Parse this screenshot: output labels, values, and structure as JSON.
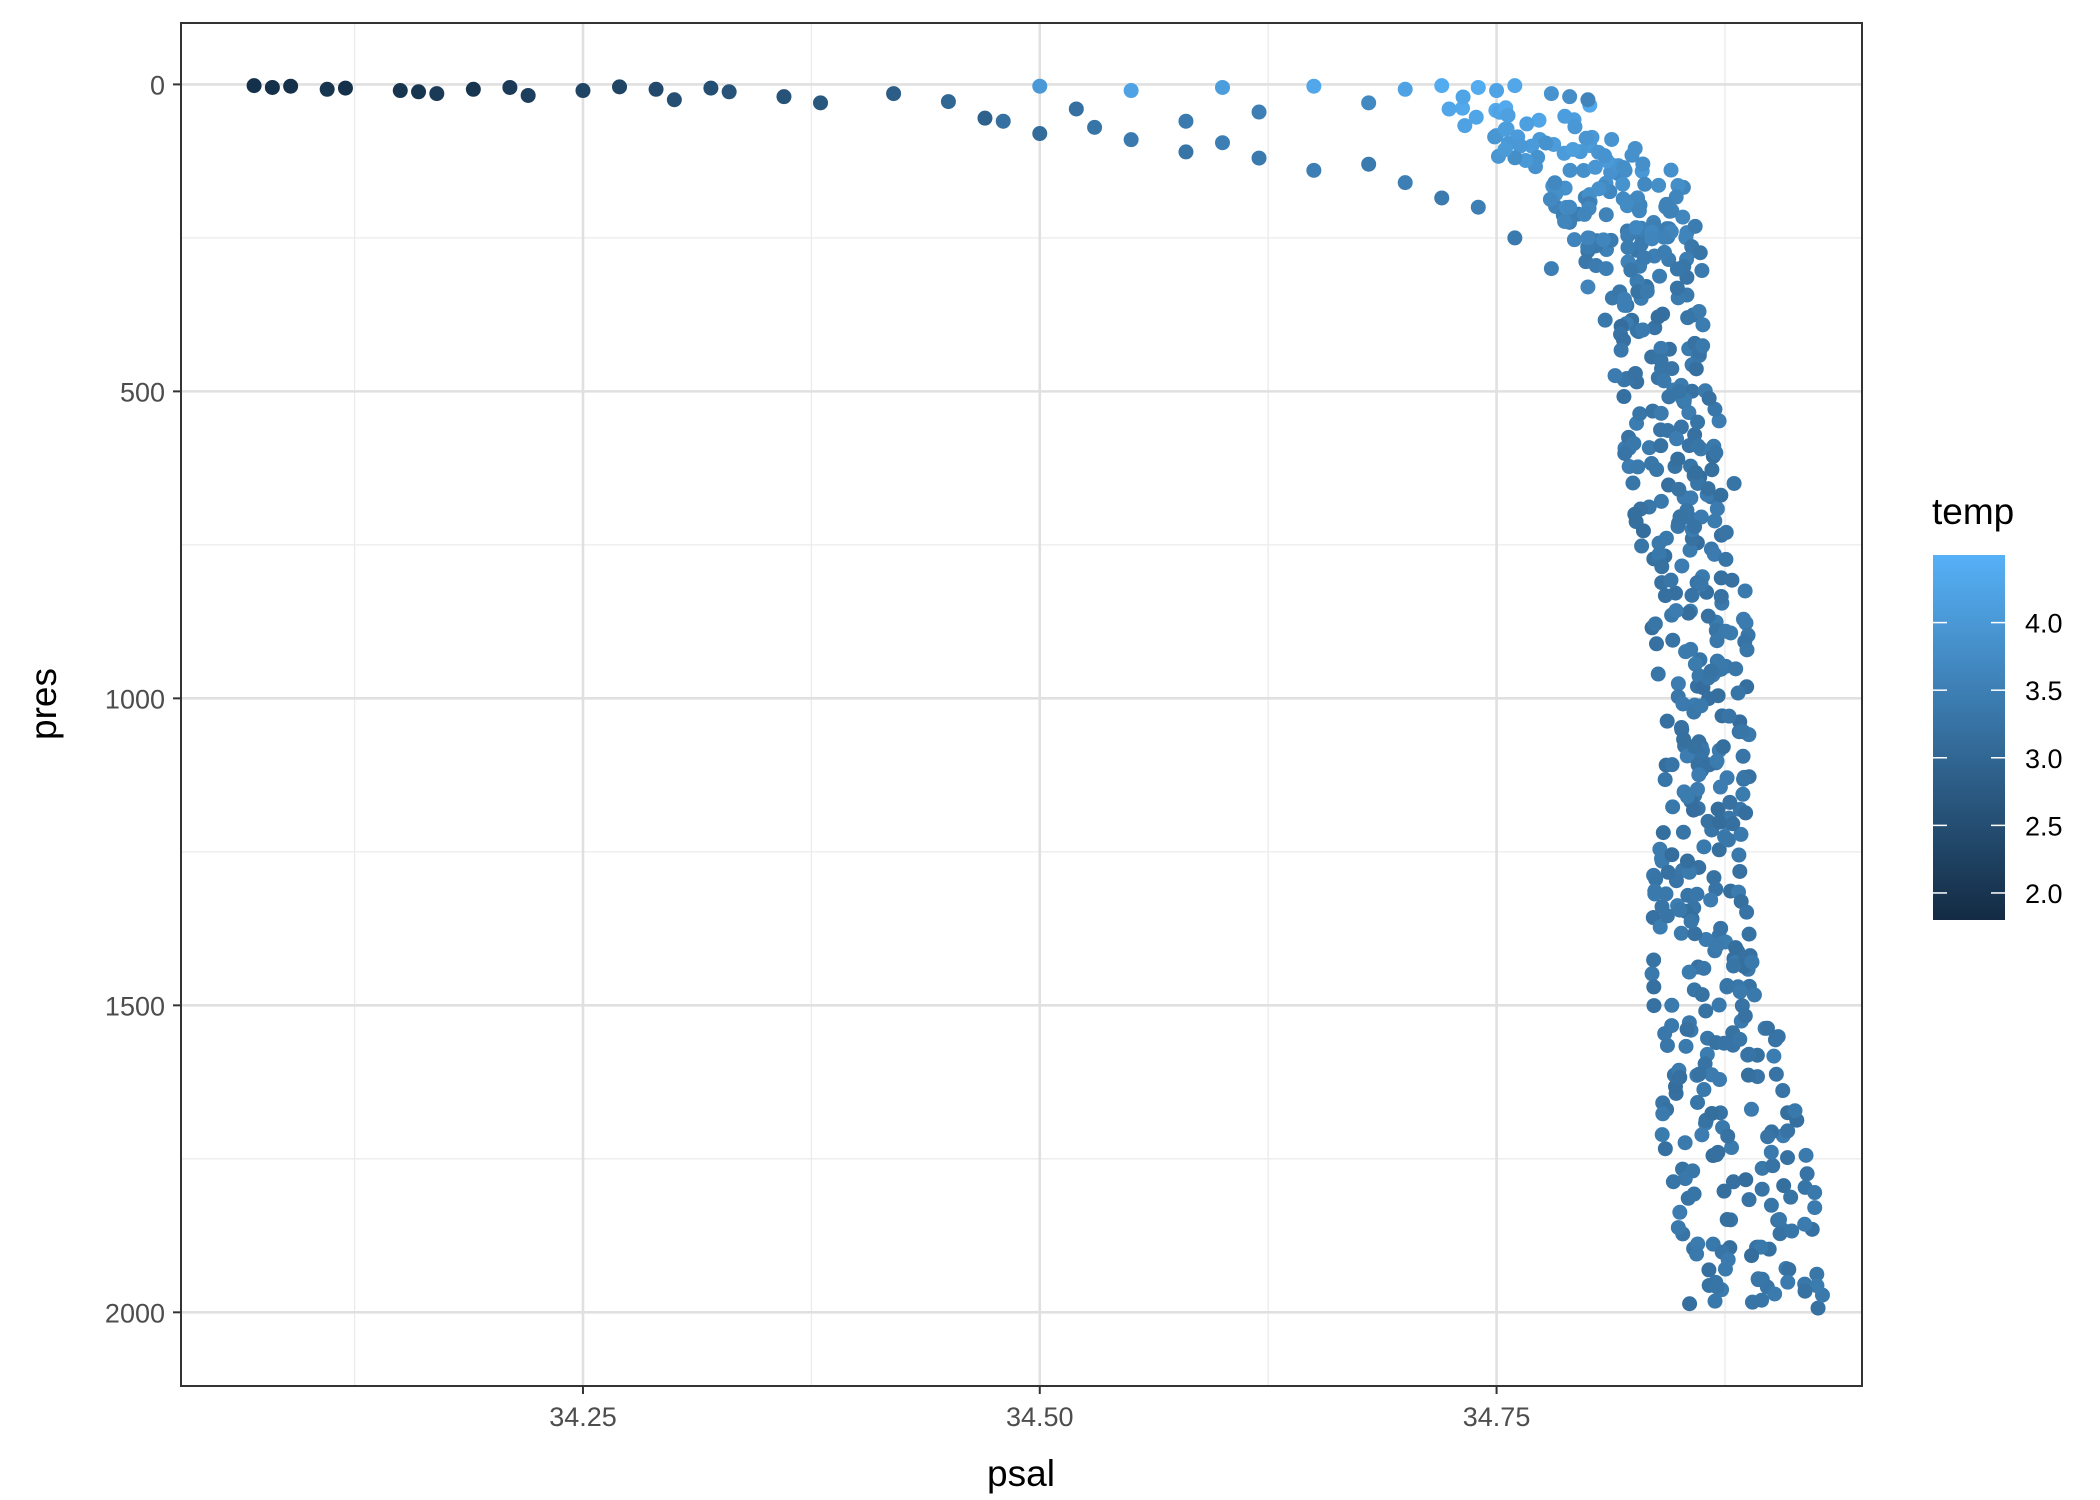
{
  "chart_data": {
    "type": "scatter",
    "xlabel": "psal",
    "ylabel": "pres",
    "xlim": [
      34.03,
      34.95
    ],
    "ylim": [
      2120,
      -100
    ],
    "y_reversed": true,
    "x_ticks": [
      34.25,
      34.5,
      34.75
    ],
    "x_tick_labels": [
      "34.25",
      "34.50",
      "34.75"
    ],
    "y_ticks": [
      0,
      500,
      1000,
      1500,
      2000
    ],
    "y_tick_labels": [
      "0",
      "500",
      "1000",
      "1500",
      "2000"
    ],
    "grid": true,
    "color_scale": {
      "variable": "temp",
      "title": "temp",
      "min": 1.8,
      "max": 4.5,
      "low_color": "#132b43",
      "high_color": "#56b1f7",
      "ticks": [
        2.0,
        2.5,
        3.0,
        3.5,
        4.0
      ],
      "tick_labels": [
        "2.0",
        "2.5",
        "3.0",
        "3.5",
        "4.0"
      ]
    },
    "legend_position": "right",
    "series": [
      {
        "x": [
          34.07,
          34.08,
          34.09,
          34.11,
          34.12,
          34.15,
          34.16,
          34.17,
          34.19,
          34.21,
          34.22,
          34.25,
          34.27,
          34.29,
          34.3,
          34.32,
          34.33,
          34.36,
          34.38,
          34.42,
          34.45,
          34.47,
          34.5,
          34.52,
          34.55,
          34.58,
          34.6,
          34.62,
          34.65,
          34.68,
          34.7,
          34.72,
          34.74,
          34.75,
          34.76,
          34.78,
          34.79,
          34.8
        ],
        "y": [
          2,
          5,
          3,
          8,
          6,
          10,
          12,
          15,
          8,
          5,
          18,
          10,
          4,
          8,
          25,
          6,
          12,
          20,
          30,
          15,
          28,
          55,
          3,
          40,
          10,
          60,
          5,
          45,
          3,
          30,
          8,
          2,
          5,
          10,
          2,
          15,
          20,
          25
        ],
        "temp": [
          1.9,
          1.9,
          1.9,
          2.0,
          1.9,
          2.0,
          2.0,
          2.1,
          2.0,
          2.1,
          2.2,
          2.3,
          2.3,
          2.4,
          2.5,
          2.5,
          2.6,
          2.6,
          2.7,
          2.8,
          3.0,
          2.9,
          4.0,
          3.2,
          4.2,
          3.4,
          4.1,
          3.5,
          4.3,
          3.7,
          4.2,
          4.4,
          4.4,
          4.2,
          4.3,
          3.9,
          3.8,
          3.6
        ]
      },
      {
        "x": [
          34.48,
          34.5,
          34.53,
          34.55,
          34.58,
          34.6,
          34.62,
          34.65,
          34.68,
          34.7,
          34.72,
          34.74,
          34.76,
          34.78,
          34.8,
          34.82,
          34.83,
          34.84
        ],
        "y": [
          60,
          80,
          70,
          90,
          110,
          95,
          120,
          140,
          130,
          160,
          185,
          200,
          250,
          300,
          330,
          360,
          400,
          430
        ],
        "temp": [
          3.2,
          3.1,
          3.3,
          3.4,
          3.3,
          3.5,
          3.4,
          3.5,
          3.4,
          3.5,
          3.4,
          3.5,
          3.4,
          3.5,
          3.6,
          3.5,
          3.5,
          3.4
        ]
      },
      {
        "x": [
          34.79,
          34.8,
          34.81,
          34.82,
          34.83,
          34.84,
          34.85,
          34.86,
          34.87,
          34.88
        ],
        "y": [
          200,
          250,
          300,
          350,
          400,
          450,
          500,
          550,
          600,
          650
        ],
        "temp": [
          3.7,
          3.6,
          3.5,
          3.5,
          3.4,
          3.3,
          3.3,
          3.3,
          3.3,
          3.3
        ]
      }
    ],
    "envelope": {
      "pres": [
        20,
        100,
        150,
        200,
        250,
        300,
        400,
        500,
        600,
        700,
        800,
        900,
        1000,
        1100,
        1200,
        1300,
        1400,
        1500,
        1600,
        1700,
        1800,
        1900,
        2000
      ],
      "psal_min": [
        34.7,
        34.74,
        34.77,
        34.78,
        34.79,
        34.8,
        34.81,
        34.815,
        34.82,
        34.825,
        34.83,
        34.835,
        34.84,
        34.84,
        34.84,
        34.835,
        34.835,
        34.835,
        34.84,
        34.84,
        34.845,
        34.85,
        34.855
      ],
      "psal_max": [
        34.81,
        34.83,
        34.85,
        34.86,
        34.87,
        34.865,
        34.865,
        34.87,
        34.875,
        34.88,
        34.885,
        34.89,
        34.89,
        34.89,
        34.89,
        34.885,
        34.89,
        34.9,
        34.91,
        34.92,
        34.925,
        34.93,
        34.93
      ],
      "temp": [
        4.3,
        4.0,
        3.8,
        3.6,
        3.5,
        3.4,
        3.3,
        3.3,
        3.3,
        3.3,
        3.3,
        3.3,
        3.3,
        3.3,
        3.3,
        3.3,
        3.3,
        3.3,
        3.3,
        3.3,
        3.3,
        3.3,
        3.3
      ]
    }
  }
}
